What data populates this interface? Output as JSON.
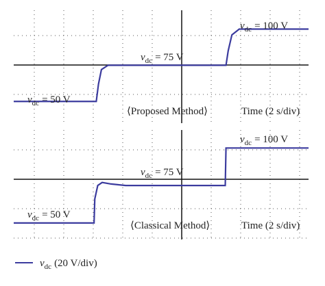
{
  "chart_data": [
    {
      "type": "line",
      "title": "⟨Proposed Method⟩",
      "x_label": "Time (2 s/div)",
      "xlim": [
        0,
        20
      ],
      "ylim": [
        35,
        113
      ],
      "x": [
        0,
        5.6,
        5.75,
        5.95,
        6.4,
        14.4,
        14.55,
        14.8,
        15.3,
        20
      ],
      "series": [
        {
          "color": "#3b3b9e",
          "values": [
            50,
            50,
            62,
            72,
            75,
            75,
            85,
            96,
            100,
            100
          ]
        }
      ],
      "annotations": [
        {
          "symbol": "v",
          "subscript": "dc",
          "text": "= 100 V"
        },
        {
          "symbol": "v",
          "subscript": "dc",
          "text": "= 75 V"
        },
        {
          "symbol": "v",
          "subscript": "dc",
          "text": "= 50 V"
        }
      ]
    },
    {
      "type": "line",
      "title": "⟨Classical Method⟩",
      "x_label": "Time (2 s/div)",
      "xlim": [
        0,
        20
      ],
      "ylim": [
        39,
        112
      ],
      "x": [
        0,
        5.45,
        5.5,
        5.7,
        6.0,
        6.6,
        7.6,
        14.35,
        14.4,
        20
      ],
      "series": [
        {
          "color": "#3b3b9e",
          "values": [
            50,
            50,
            66,
            75,
            77,
            76,
            75,
            75,
            100,
            100
          ]
        }
      ],
      "annotations": [
        {
          "symbol": "v",
          "subscript": "dc",
          "text": "= 100 V"
        },
        {
          "symbol": "v",
          "subscript": "dc",
          "text": "= 75 V"
        },
        {
          "symbol": "v",
          "subscript": "dc",
          "text": "= 50 V"
        }
      ]
    }
  ],
  "legend": {
    "symbol": "v",
    "subscript": "dc",
    "text": "(20 V/div)"
  }
}
